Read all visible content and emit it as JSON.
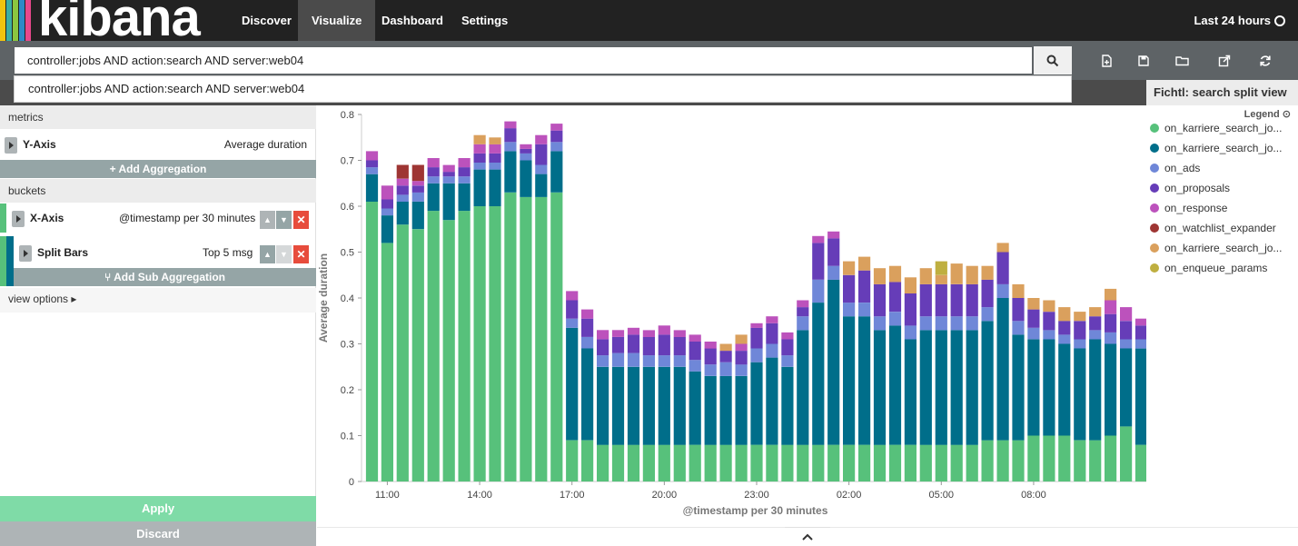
{
  "nav": {
    "brand": "kibana",
    "brand_stripes": [
      "#f1c40f",
      "#3caea3",
      "#e8488b",
      "#2d8ac7",
      "#8cc63f",
      "#222222"
    ],
    "items": [
      {
        "label": "Discover",
        "active": false
      },
      {
        "label": "Visualize",
        "active": true
      },
      {
        "label": "Dashboard",
        "active": false
      },
      {
        "label": "Settings",
        "active": false
      }
    ],
    "time_range": "Last 24 hours"
  },
  "search": {
    "query": "controller:jobs AND action:search AND server:web04",
    "suggestion": "controller:jobs AND action:search AND server:web04"
  },
  "toolbar_icons": [
    "new-visualization-icon",
    "save-icon",
    "open-folder-icon",
    "share-icon",
    "refresh-icon"
  ],
  "vis_title": "Fichtl: search split view",
  "sidebar": {
    "metrics_label": "metrics",
    "y_axis": {
      "title": "Y-Axis",
      "desc": "Average duration"
    },
    "add_aggregation": "+ Add Aggregation",
    "buckets_label": "buckets",
    "x_axis": {
      "title": "X-Axis",
      "desc": "@timestamp per 30 minutes"
    },
    "split_bars": {
      "title": "Split Bars",
      "desc": "Top 5 msg"
    },
    "add_sub_aggregation": "⑂ Add Sub Aggregation",
    "view_options": "view options ▸",
    "apply": "Apply",
    "discard": "Discard"
  },
  "legend": {
    "toggle": "Legend ⊙",
    "items": [
      {
        "label": "on_karriere_search_jo...",
        "color": "#57c17b"
      },
      {
        "label": "on_karriere_search_jo...",
        "color": "#006e8a"
      },
      {
        "label": "on_ads",
        "color": "#6f87d8"
      },
      {
        "label": "on_proposals",
        "color": "#663db8"
      },
      {
        "label": "on_response",
        "color": "#bc52bc"
      },
      {
        "label": "on_watchlist_expander",
        "color": "#9e3533"
      },
      {
        "label": "on_karriere_search_jo...",
        "color": "#daa05d"
      },
      {
        "label": "on_enqueue_params",
        "color": "#bfaf40"
      }
    ]
  },
  "chart_data": {
    "type": "bar",
    "stacked": true,
    "xlabel": "@timestamp per 30 minutes",
    "ylabel": "Average duration",
    "ylim": [
      0,
      0.8
    ],
    "yticks": [
      "0",
      "0.1",
      "0.2",
      "0.3",
      "0.4",
      "0.5",
      "0.6",
      "0.7",
      "0.8"
    ],
    "xtick_labels": [
      {
        "bar": 1,
        "label": "11:00"
      },
      {
        "bar": 7,
        "label": "14:00"
      },
      {
        "bar": 13,
        "label": "17:00"
      },
      {
        "bar": 19,
        "label": "20:00"
      },
      {
        "bar": 25,
        "label": "23:00"
      },
      {
        "bar": 31,
        "label": "02:00"
      },
      {
        "bar": 37,
        "label": "05:00"
      },
      {
        "bar": 43,
        "label": "08:00"
      }
    ],
    "colors": [
      "#57c17b",
      "#006e8a",
      "#6f87d8",
      "#663db8",
      "#bc52bc",
      "#9e3533",
      "#daa05d",
      "#bfaf40"
    ],
    "bars": [
      [
        0.61,
        0.06,
        0.015,
        0.015,
        0.02,
        0,
        0,
        0
      ],
      [
        0.52,
        0.06,
        0.015,
        0.02,
        0.03,
        0,
        0,
        0
      ],
      [
        0.56,
        0.05,
        0.015,
        0.02,
        0.015,
        0.03,
        0,
        0
      ],
      [
        0.55,
        0.06,
        0.02,
        0.015,
        0.01,
        0.035,
        0,
        0
      ],
      [
        0.59,
        0.06,
        0.015,
        0.02,
        0.02,
        0,
        0,
        0
      ],
      [
        0.57,
        0.08,
        0.015,
        0.01,
        0.015,
        0,
        0,
        0
      ],
      [
        0.59,
        0.06,
        0.015,
        0.02,
        0.02,
        0,
        0,
        0
      ],
      [
        0.6,
        0.08,
        0.015,
        0.02,
        0.02,
        0,
        0.02,
        0
      ],
      [
        0.6,
        0.08,
        0.015,
        0.02,
        0.02,
        0,
        0.015,
        0
      ],
      [
        0.63,
        0.09,
        0.02,
        0.03,
        0.015,
        0,
        0,
        0
      ],
      [
        0.62,
        0.08,
        0.015,
        0.01,
        0.01,
        0,
        0,
        0
      ],
      [
        0.62,
        0.05,
        0.02,
        0.045,
        0.02,
        0,
        0,
        0
      ],
      [
        0.63,
        0.09,
        0.02,
        0.025,
        0.015,
        0,
        0,
        0
      ],
      [
        0.09,
        0.245,
        0.02,
        0.04,
        0.02,
        0,
        0,
        0
      ],
      [
        0.09,
        0.2,
        0.025,
        0.04,
        0.02,
        0,
        0,
        0
      ],
      [
        0.08,
        0.17,
        0.025,
        0.035,
        0.02,
        0,
        0,
        0
      ],
      [
        0.08,
        0.17,
        0.03,
        0.035,
        0.015,
        0,
        0,
        0
      ],
      [
        0.08,
        0.17,
        0.03,
        0.04,
        0.015,
        0,
        0,
        0
      ],
      [
        0.08,
        0.17,
        0.025,
        0.04,
        0.015,
        0,
        0,
        0
      ],
      [
        0.08,
        0.17,
        0.025,
        0.045,
        0.02,
        0,
        0,
        0
      ],
      [
        0.08,
        0.17,
        0.025,
        0.04,
        0.015,
        0,
        0,
        0
      ],
      [
        0.08,
        0.16,
        0.025,
        0.04,
        0.015,
        0,
        0,
        0
      ],
      [
        0.08,
        0.15,
        0.025,
        0.035,
        0.015,
        0,
        0,
        0
      ],
      [
        0.08,
        0.15,
        0.03,
        0.025,
        0,
        0,
        0.015,
        0
      ],
      [
        0.08,
        0.15,
        0.025,
        0.03,
        0.015,
        0,
        0.02,
        0
      ],
      [
        0.08,
        0.18,
        0.03,
        0.045,
        0.01,
        0,
        0,
        0
      ],
      [
        0.08,
        0.19,
        0.03,
        0.045,
        0.015,
        0,
        0,
        0
      ],
      [
        0.08,
        0.17,
        0.025,
        0.035,
        0.015,
        0,
        0,
        0
      ],
      [
        0.08,
        0.25,
        0.03,
        0.02,
        0.015,
        0,
        0,
        0
      ],
      [
        0.08,
        0.31,
        0.05,
        0.08,
        0.015,
        0,
        0,
        0
      ],
      [
        0.08,
        0.36,
        0.03,
        0.06,
        0.015,
        0,
        0,
        0
      ],
      [
        0.08,
        0.28,
        0.03,
        0.06,
        0,
        0,
        0.03,
        0
      ],
      [
        0.08,
        0.28,
        0.03,
        0.07,
        0,
        0,
        0.03,
        0
      ],
      [
        0.08,
        0.25,
        0.03,
        0.07,
        0,
        0,
        0.035,
        0
      ],
      [
        0.08,
        0.26,
        0.03,
        0.065,
        0,
        0,
        0.035,
        0
      ],
      [
        0.08,
        0.23,
        0.03,
        0.07,
        0,
        0,
        0.035,
        0
      ],
      [
        0.08,
        0.25,
        0.03,
        0.07,
        0,
        0,
        0.035,
        0
      ],
      [
        0.08,
        0.25,
        0.03,
        0.07,
        0,
        0,
        0.02,
        0.03
      ],
      [
        0.08,
        0.25,
        0.03,
        0.07,
        0,
        0,
        0.045,
        0
      ],
      [
        0.08,
        0.25,
        0.03,
        0.07,
        0,
        0,
        0.04,
        0
      ],
      [
        0.09,
        0.26,
        0.03,
        0.06,
        0,
        0,
        0.03,
        0
      ],
      [
        0.09,
        0.31,
        0.03,
        0.07,
        0,
        0,
        0.02,
        0
      ],
      [
        0.09,
        0.23,
        0.03,
        0.05,
        0,
        0,
        0.03,
        0
      ],
      [
        0.1,
        0.21,
        0.025,
        0.04,
        0,
        0,
        0.025,
        0
      ],
      [
        0.1,
        0.21,
        0.02,
        0.04,
        0,
        0,
        0.025,
        0
      ],
      [
        0.1,
        0.2,
        0.02,
        0.03,
        0,
        0,
        0.03,
        0
      ],
      [
        0.09,
        0.2,
        0.02,
        0.04,
        0,
        0,
        0.02,
        0
      ],
      [
        0.09,
        0.22,
        0.02,
        0.03,
        0,
        0,
        0.02,
        0
      ],
      [
        0.1,
        0.2,
        0.025,
        0.04,
        0.03,
        0,
        0.025,
        0
      ],
      [
        0.12,
        0.17,
        0.02,
        0.04,
        0.03,
        0,
        0,
        0
      ],
      [
        0.08,
        0.21,
        0.02,
        0.03,
        0.015,
        0,
        0,
        0
      ]
    ]
  }
}
